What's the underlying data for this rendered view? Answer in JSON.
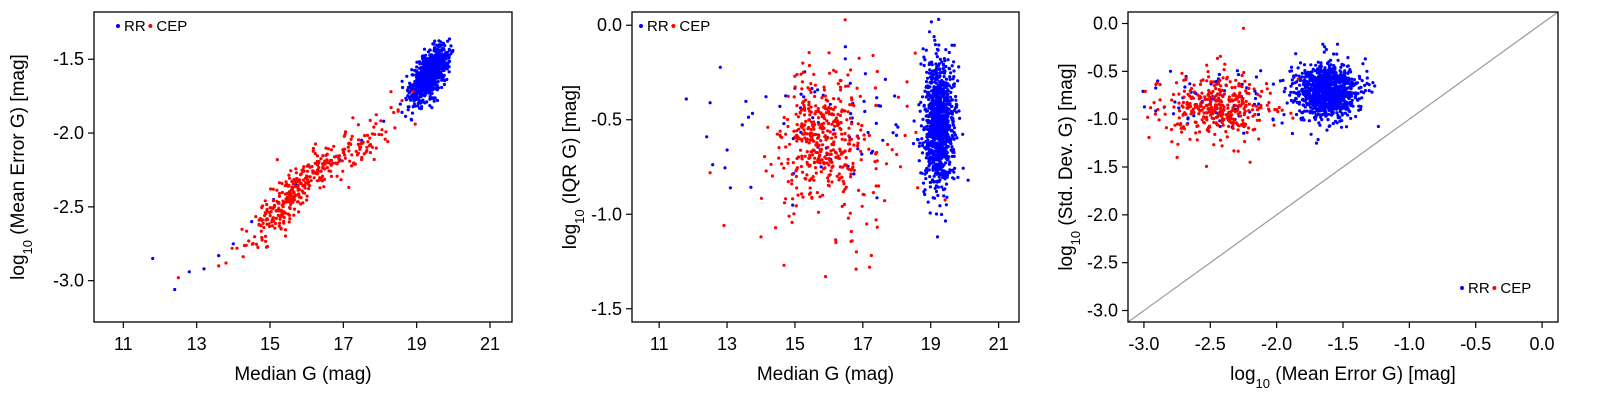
{
  "colors": {
    "rr": "#0000ff",
    "cep": "#ff0000",
    "diagonal": "#999999",
    "axis": "#000000"
  },
  "chart_data": [
    {
      "type": "scatter",
      "id": "p1",
      "xlabel": "Median G (mag)",
      "ylabel": {
        "pre": "log",
        "sub": "10",
        "post": " (Mean Error G) [mag]"
      },
      "xlim": [
        10.2,
        21.6
      ],
      "ylim": [
        -3.28,
        -1.18
      ],
      "xticks": [
        11,
        13,
        15,
        17,
        19,
        21
      ],
      "xtick_labels": [
        "11",
        "13",
        "15",
        "17",
        "19",
        "21"
      ],
      "yticks": [
        -3.0,
        -2.5,
        -2.0,
        -1.5
      ],
      "ytick_labels": [
        "-3.0",
        "-2.5",
        "-2.0",
        "-1.5"
      ],
      "legend": {
        "position": "top-left",
        "entries": [
          "RR",
          "CEP"
        ]
      },
      "series": [
        {
          "name": "RR",
          "clusters": [
            {
              "count": 900,
              "cx": 19.35,
              "cy": -1.6,
              "sx": 0.25,
              "sy": 0.09,
              "corr": 0.6
            }
          ],
          "points": [
            [
              11.8,
              -2.85
            ],
            [
              12.4,
              -3.06
            ],
            [
              12.8,
              -2.94
            ],
            [
              13.2,
              -2.92
            ],
            [
              13.6,
              -2.83
            ],
            [
              14.0,
              -2.75
            ],
            [
              14.5,
              -2.6
            ],
            [
              15.1,
              -2.45
            ],
            [
              15.7,
              -2.35
            ],
            [
              16.3,
              -2.25
            ],
            [
              16.9,
              -2.18
            ],
            [
              17.5,
              -2.05
            ],
            [
              18.1,
              -1.92
            ],
            [
              18.6,
              -1.86
            ]
          ]
        },
        {
          "name": "CEP",
          "clusters": [
            {
              "count": 260,
              "cx": 15.6,
              "cy": -2.43,
              "sx": 0.6,
              "sy": 0.17,
              "corr": 0.9
            },
            {
              "count": 120,
              "cx": 16.9,
              "cy": -2.15,
              "sx": 0.9,
              "sy": 0.15,
              "corr": 0.85
            }
          ],
          "points": [
            [
              12.5,
              -2.98
            ],
            [
              13.6,
              -2.9
            ],
            [
              13.8,
              -2.88
            ],
            [
              14.1,
              -2.78
            ],
            [
              15.2,
              -2.18
            ],
            [
              18.3,
              -1.72
            ],
            [
              18.6,
              -1.78
            ],
            [
              18.9,
              -1.72
            ],
            [
              17.3,
              -2.21
            ]
          ]
        }
      ]
    },
    {
      "type": "scatter",
      "id": "p2",
      "xlabel": "Median G (mag)",
      "ylabel": {
        "pre": "log",
        "sub": "10",
        "post": " (IQR G) [mag]"
      },
      "xlim": [
        10.2,
        21.6
      ],
      "ylim": [
        -1.57,
        0.07
      ],
      "xticks": [
        11,
        13,
        15,
        17,
        19,
        21
      ],
      "xtick_labels": [
        "11",
        "13",
        "15",
        "17",
        "19",
        "21"
      ],
      "yticks": [
        -1.5,
        -1.0,
        -0.5,
        0.0
      ],
      "ytick_labels": [
        "-1.5",
        "-1.0",
        "-0.5",
        "0.0"
      ],
      "legend": {
        "position": "top-left",
        "entries": [
          "RR",
          "CEP"
        ]
      },
      "series": [
        {
          "name": "RR",
          "clusters": [
            {
              "count": 1000,
              "cx": 19.25,
              "cy": -0.52,
              "sx": 0.22,
              "sy": 0.17,
              "corr": 0.0
            },
            {
              "count": 70,
              "cx": 16.0,
              "cy": -0.55,
              "sx": 1.3,
              "sy": 0.2,
              "corr": 0.0
            }
          ],
          "points": [
            [
              11.8,
              -0.39
            ],
            [
              12.4,
              -0.59
            ],
            [
              12.5,
              -0.41
            ],
            [
              13.0,
              -0.66
            ],
            [
              13.1,
              -0.86
            ],
            [
              19.2,
              -1.12
            ],
            [
              19.1,
              -0.06
            ],
            [
              20.1,
              -0.82
            ]
          ]
        },
        {
          "name": "CEP",
          "clusters": [
            {
              "count": 300,
              "cx": 15.7,
              "cy": -0.58,
              "sx": 0.5,
              "sy": 0.15,
              "corr": 0.0
            },
            {
              "count": 160,
              "cx": 16.2,
              "cy": -0.72,
              "sx": 1.1,
              "sy": 0.22,
              "corr": 0.0
            }
          ],
          "points": [
            [
              12.5,
              -0.78
            ],
            [
              14.0,
              -1.12
            ],
            [
              15.9,
              -1.33
            ],
            [
              16.8,
              -1.29
            ],
            [
              17.2,
              -1.28
            ],
            [
              17.3,
              -0.16
            ],
            [
              14.2,
              -0.54
            ],
            [
              18.3,
              -0.3
            ]
          ]
        }
      ]
    },
    {
      "type": "scatter",
      "id": "p3",
      "xlabel": {
        "pre": "log",
        "sub": "10",
        "post": " (Mean Error G) [mag]"
      },
      "ylabel": {
        "pre": "log",
        "sub": "10",
        "post": " (Std. Dev. G) [mag]"
      },
      "xlim": [
        -3.12,
        0.12
      ],
      "ylim": [
        -3.12,
        0.12
      ],
      "xticks": [
        -3.0,
        -2.5,
        -2.0,
        -1.5,
        -1.0,
        -0.5,
        0.0
      ],
      "xtick_labels": [
        "-3.0",
        "-2.5",
        "-2.0",
        "-1.5",
        "-1.0",
        "-0.5",
        "0.0"
      ],
      "yticks": [
        -3.0,
        -2.5,
        -2.0,
        -1.5,
        -1.0,
        -0.5,
        0.0
      ],
      "ytick_labels": [
        "-3.0",
        "-2.5",
        "-2.0",
        "-1.5",
        "-1.0",
        "-0.5",
        "0.0"
      ],
      "diagonal": true,
      "legend": {
        "position": "bottom-right",
        "entries": [
          "RR",
          "CEP"
        ]
      },
      "series": [
        {
          "name": "RR",
          "clusters": [
            {
              "count": 950,
              "cx": -1.62,
              "cy": -0.72,
              "sx": 0.12,
              "sy": 0.15,
              "corr": 0.0
            },
            {
              "count": 70,
              "cx": -2.45,
              "cy": -0.8,
              "sx": 0.25,
              "sy": 0.15,
              "corr": 0.0
            }
          ],
          "points": [
            [
              -1.35,
              -0.42
            ],
            [
              -1.32,
              -0.5
            ],
            [
              -1.7,
              -1.25
            ],
            [
              -1.9,
              -0.5
            ],
            [
              -2.8,
              -0.5
            ]
          ]
        },
        {
          "name": "CEP",
          "clusters": [
            {
              "count": 380,
              "cx": -2.45,
              "cy": -0.86,
              "sx": 0.2,
              "sy": 0.17,
              "corr": 0.0
            }
          ],
          "points": [
            [
              -2.25,
              -0.05
            ],
            [
              -2.9,
              -0.62
            ],
            [
              -2.95,
              -0.88
            ],
            [
              -2.2,
              -1.45
            ],
            [
              -2.0,
              -0.9
            ],
            [
              -2.75,
              -1.4
            ]
          ]
        }
      ]
    }
  ]
}
